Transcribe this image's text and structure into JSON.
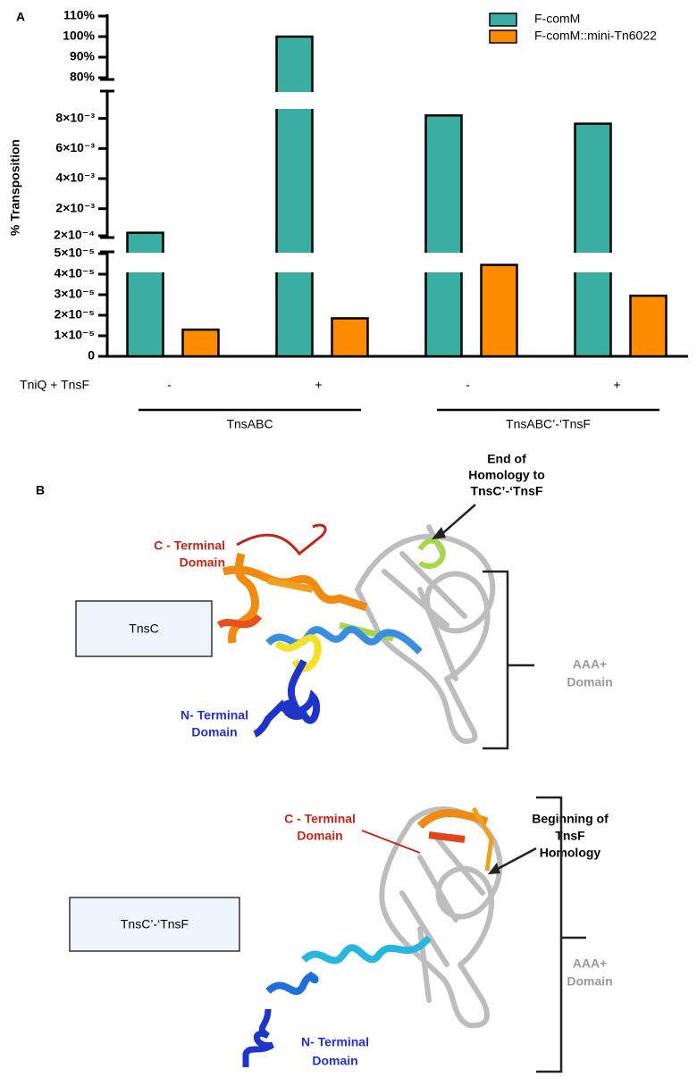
{
  "chart_data": {
    "type": "bar",
    "panel_label": "A",
    "ylabel": "% Transposition",
    "category_title": "TniQ + TnsF",
    "categories": [
      "-",
      "+",
      "-",
      "+"
    ],
    "group_labels": [
      "TnsABC",
      "TnsABC’-‘TnsF"
    ],
    "series": [
      {
        "name": "F-comM",
        "color": "#3aaea0",
        "values": [
          0.0004,
          100,
          0.0082,
          0.00765
        ]
      },
      {
        "name": "F-comM::mini-Tn6022",
        "color": "#ff8c00",
        "values": [
          1.3e-05,
          1.85e-05,
          4.45e-05,
          2.95e-05
        ]
      }
    ],
    "y_axis_segments": [
      {
        "ylim": [
          0,
          5e-05
        ],
        "yticks": [
          0,
          {
            "value": 1e-05,
            "label": "1×10⁻⁵"
          },
          {
            "value": 2e-05,
            "label": "2×10⁻⁵"
          },
          {
            "value": 3e-05,
            "label": "3×10⁻⁵"
          },
          {
            "value": 4e-05,
            "label": "4×10⁻⁵"
          },
          {
            "value": 5e-05,
            "label": "5×10⁻⁵"
          }
        ]
      },
      {
        "ylim": [
          0.0002,
          0.0097
        ],
        "yticks": [
          {
            "value": 0.0002,
            "label": "2×10⁻⁴"
          },
          {
            "value": 0.002,
            "label": "2×10⁻³"
          },
          {
            "value": 0.004,
            "label": "4×10⁻³"
          },
          {
            "value": 0.006,
            "label": "6×10⁻³"
          },
          {
            "value": 0.008,
            "label": "8×10⁻³"
          }
        ]
      },
      {
        "ylim": [
          80,
          110
        ],
        "yticks": [
          {
            "value": 80,
            "label": "80%"
          },
          {
            "value": 90,
            "label": "90%"
          },
          {
            "value": 100,
            "label": "100%"
          },
          {
            "value": 110,
            "label": "110%"
          }
        ]
      }
    ],
    "legend": "top-right"
  },
  "panel_b": {
    "panel_label": "B",
    "tnsc": {
      "box": "TnsC",
      "end_note": [
        "End of",
        "Homology to",
        "TnsC’-‘TnsF"
      ],
      "c_terminal": [
        "C - Terminal",
        "Domain"
      ],
      "n_terminal": [
        "N- Terminal",
        "Domain"
      ],
      "aaa": [
        "AAA+",
        "Domain"
      ]
    },
    "fusion": {
      "box": "TnsC’-‘TnsF",
      "begin_note": [
        "Beginning of",
        "TnsF",
        "Homology"
      ],
      "c_terminal": [
        "C - Terminal",
        "Domain"
      ],
      "n_terminal": [
        "N- Terminal",
        "Domain"
      ],
      "aaa": [
        "AAA+",
        "Domain"
      ]
    }
  }
}
